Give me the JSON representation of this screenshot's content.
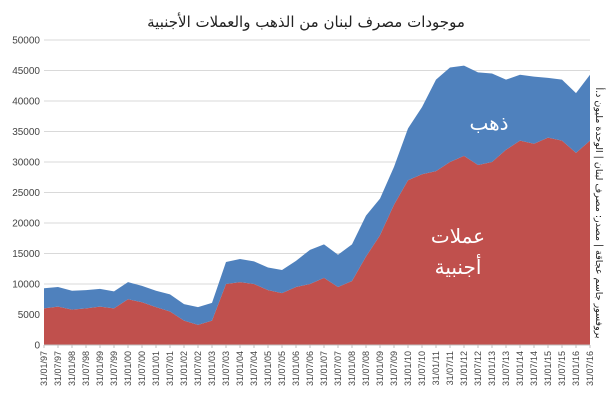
{
  "chart_data": {
    "type": "area",
    "title": "موجودات مصرف لبنان من الذهب والعملات الأجنبية",
    "source_note": "بروفسور جاسم عجاقة | مصدر: مصرف لبنان | الوحدة مليون د.أ",
    "ylim": [
      0,
      50000
    ],
    "yticks": [
      0,
      5000,
      10000,
      15000,
      20000,
      25000,
      30000,
      35000,
      40000,
      45000,
      50000
    ],
    "x_tick_labels": [
      "31/01/97",
      "31/07/97",
      "31/01/98",
      "31/07/98",
      "31/01/99",
      "31/07/99",
      "31/01/00",
      "31/07/00",
      "31/01/01",
      "31/07/01",
      "31/01/02",
      "31/07/02",
      "31/01/03",
      "31/07/03",
      "31/01/04",
      "31/07/04",
      "31/01/05",
      "31/07/05",
      "31/01/06",
      "31/07/06",
      "31/01/07",
      "31/07/07",
      "31/01/08",
      "31/07/08",
      "31/01/09",
      "31/07/09",
      "31/01/10",
      "31/07/10",
      "31/01/11",
      "31/07/11",
      "31/01/12",
      "31/07/12",
      "31/01/13",
      "31/07/13",
      "31/01/14",
      "31/07/14",
      "31/01/15",
      "31/07/15",
      "31/01/16",
      "31/07/16"
    ],
    "x": [
      1997.0,
      1997.5,
      1998.0,
      1998.5,
      1999.0,
      1999.5,
      2000.0,
      2000.5,
      2001.0,
      2001.5,
      2002.0,
      2002.5,
      2003.0,
      2003.5,
      2004.0,
      2004.5,
      2005.0,
      2005.5,
      2006.0,
      2006.5,
      2007.0,
      2007.5,
      2008.0,
      2008.5,
      2009.0,
      2009.5,
      2010.0,
      2010.5,
      2011.0,
      2011.5,
      2012.0,
      2012.5,
      2013.0,
      2013.5,
      2014.0,
      2014.5,
      2015.0,
      2015.5,
      2016.0,
      2016.5
    ],
    "series": [
      {
        "name": "عملات أجنبية",
        "color": "#c0504d",
        "values": [
          6000,
          6300,
          5800,
          6000,
          6300,
          6000,
          7500,
          7000,
          6200,
          5500,
          4000,
          3300,
          4000,
          10000,
          10300,
          10000,
          9000,
          8500,
          9500,
          10000,
          11000,
          9500,
          10500,
          14500,
          18000,
          23000,
          27000,
          28000,
          28500,
          30000,
          31000,
          29500,
          30000,
          32000,
          33500,
          33000,
          34000,
          33500,
          31500,
          33500
        ]
      },
      {
        "name": "ذهب",
        "color": "#4f81bd",
        "values": [
          3300,
          3200,
          3100,
          3000,
          2900,
          2800,
          2800,
          2700,
          2700,
          2800,
          2700,
          2900,
          2900,
          3600,
          3800,
          3700,
          3700,
          3800,
          4300,
          5600,
          5500,
          5300,
          6000,
          6700,
          6000,
          6200,
          8500,
          11000,
          15000,
          15500,
          14800,
          15200,
          14500,
          11500,
          10800,
          11000,
          9800,
          10000,
          9800,
          10800
        ]
      }
    ]
  }
}
